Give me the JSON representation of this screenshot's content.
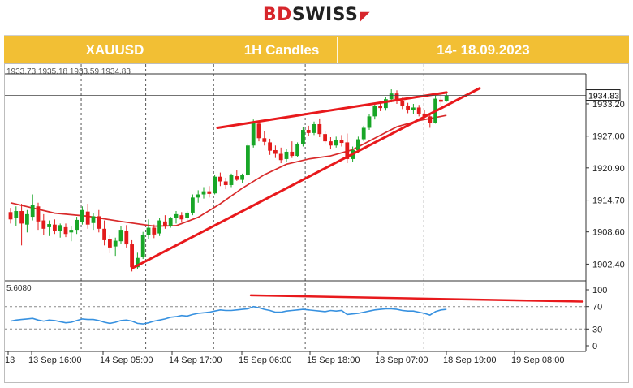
{
  "brand": {
    "part1": "BD",
    "part2": "SWISS",
    "mark": "◤"
  },
  "header": {
    "symbol": "XAUUSD",
    "timeframe": "1H Candles",
    "dates": "14- 18.09.2023"
  },
  "colors": {
    "up": "#18a627",
    "down": "#e21b1b",
    "trend": "#e8191c",
    "ma": "#d82a2a",
    "rsi": "#3791e0",
    "header_bg": "#f2bf34"
  },
  "chart_data": [
    {
      "type": "candlestick",
      "price_tag": "1934.83",
      "y_ticks": [
        "1933.20",
        "1927.00",
        "1920.90",
        "1914.70",
        "1908.60",
        "1902.40"
      ],
      "x_ticks": [
        "13",
        "13 Sep 16:00",
        "14 Sep 05:00",
        "14 Sep 17:00",
        "15 Sep 06:00",
        "15 Sep 18:00",
        "18 Sep 07:00",
        "18 Sep 19:00",
        "19 Sep 08:00"
      ],
      "ohlc_label": "1933.73 1935.18 1933.59 1934.83",
      "ylim": [
        1899.5,
        1938.5
      ],
      "candles": [
        [
          1912.4,
          1913.2,
          1910.2,
          1911.0
        ],
        [
          1911.3,
          1913.5,
          1909.8,
          1912.6
        ],
        [
          1912.6,
          1914.0,
          1906.0,
          1910.2
        ],
        [
          1910.0,
          1912.8,
          1908.5,
          1912.0
        ],
        [
          1911.5,
          1915.8,
          1910.8,
          1913.8
        ],
        [
          1913.5,
          1914.2,
          1909.0,
          1910.6
        ],
        [
          1910.8,
          1912.0,
          1908.0,
          1909.2
        ],
        [
          1909.5,
          1910.8,
          1907.8,
          1910.1
        ],
        [
          1910.0,
          1911.0,
          1908.2,
          1908.8
        ],
        [
          1908.8,
          1910.2,
          1907.5,
          1909.9
        ],
        [
          1909.5,
          1910.2,
          1907.6,
          1908.2
        ],
        [
          1908.5,
          1909.8,
          1906.8,
          1909.0
        ],
        [
          1909.0,
          1911.5,
          1908.2,
          1910.9
        ],
        [
          1910.5,
          1913.5,
          1910.0,
          1912.8
        ],
        [
          1912.5,
          1914.0,
          1909.2,
          1910.0
        ],
        [
          1910.3,
          1912.2,
          1909.0,
          1911.6
        ],
        [
          1911.6,
          1912.8,
          1908.5,
          1909.2
        ],
        [
          1909.2,
          1910.8,
          1906.0,
          1907.0
        ],
        [
          1907.2,
          1908.0,
          1904.5,
          1905.6
        ],
        [
          1905.8,
          1907.5,
          1904.0,
          1906.9
        ],
        [
          1906.8,
          1909.8,
          1906.2,
          1909.0
        ],
        [
          1908.8,
          1909.9,
          1905.6,
          1906.2
        ],
        [
          1906.2,
          1907.0,
          1901.0,
          1901.8
        ],
        [
          1901.8,
          1904.6,
          1901.5,
          1903.6
        ],
        [
          1903.8,
          1908.6,
          1903.4,
          1908.0
        ],
        [
          1908.0,
          1911.0,
          1907.2,
          1909.4
        ],
        [
          1909.4,
          1910.0,
          1907.4,
          1908.1
        ],
        [
          1908.3,
          1911.2,
          1907.8,
          1910.8
        ],
        [
          1910.6,
          1911.8,
          1909.2,
          1909.8
        ],
        [
          1909.8,
          1911.5,
          1909.4,
          1911.2
        ],
        [
          1911.2,
          1912.6,
          1910.2,
          1912.0
        ],
        [
          1911.8,
          1912.4,
          1910.4,
          1911.0
        ],
        [
          1911.2,
          1912.6,
          1910.8,
          1912.3
        ],
        [
          1912.3,
          1915.8,
          1911.8,
          1915.2
        ],
        [
          1915.2,
          1916.6,
          1914.2,
          1915.8
        ],
        [
          1915.8,
          1917.2,
          1915.0,
          1916.4
        ],
        [
          1916.4,
          1917.4,
          1915.2,
          1915.9
        ],
        [
          1916.0,
          1919.6,
          1915.8,
          1919.2
        ],
        [
          1919.2,
          1920.0,
          1917.4,
          1918.3
        ],
        [
          1918.3,
          1919.0,
          1916.8,
          1917.6
        ],
        [
          1917.6,
          1919.8,
          1917.2,
          1919.5
        ],
        [
          1919.3,
          1920.4,
          1918.4,
          1918.6
        ],
        [
          1918.6,
          1919.8,
          1918.0,
          1919.6
        ],
        [
          1919.6,
          1925.6,
          1919.4,
          1925.2
        ],
        [
          1925.2,
          1930.2,
          1924.8,
          1929.6
        ],
        [
          1929.4,
          1929.8,
          1926.0,
          1926.6
        ],
        [
          1926.6,
          1928.0,
          1925.2,
          1925.9
        ],
        [
          1925.8,
          1926.5,
          1923.4,
          1924.2
        ],
        [
          1924.3,
          1925.2,
          1922.8,
          1923.6
        ],
        [
          1923.6,
          1924.8,
          1921.8,
          1922.4
        ],
        [
          1922.6,
          1924.5,
          1922.0,
          1924.0
        ],
        [
          1924.0,
          1926.0,
          1922.8,
          1923.2
        ],
        [
          1923.2,
          1925.8,
          1923.0,
          1925.4
        ],
        [
          1925.4,
          1928.8,
          1925.0,
          1928.2
        ],
        [
          1928.2,
          1929.0,
          1927.0,
          1927.6
        ],
        [
          1927.6,
          1929.8,
          1927.2,
          1929.3
        ],
        [
          1929.3,
          1930.4,
          1926.8,
          1927.4
        ],
        [
          1927.4,
          1928.0,
          1925.6,
          1926.0
        ],
        [
          1926.0,
          1926.8,
          1924.6,
          1925.2
        ],
        [
          1925.2,
          1926.9,
          1924.8,
          1926.2
        ],
        [
          1926.3,
          1927.2,
          1925.0,
          1925.7
        ],
        [
          1925.8,
          1927.5,
          1921.8,
          1922.6
        ],
        [
          1922.6,
          1925.0,
          1922.0,
          1924.3
        ],
        [
          1924.3,
          1926.9,
          1923.8,
          1926.4
        ],
        [
          1926.4,
          1929.0,
          1926.0,
          1928.6
        ],
        [
          1928.6,
          1931.2,
          1928.2,
          1930.8
        ],
        [
          1930.8,
          1933.2,
          1930.2,
          1932.8
        ],
        [
          1932.8,
          1933.7,
          1931.8,
          1932.4
        ],
        [
          1932.4,
          1934.6,
          1931.9,
          1934.1
        ],
        [
          1934.1,
          1936.0,
          1933.5,
          1935.2
        ],
        [
          1935.2,
          1935.8,
          1933.2,
          1933.8
        ],
        [
          1933.8,
          1934.4,
          1932.2,
          1932.8
        ],
        [
          1932.8,
          1933.4,
          1931.4,
          1932.1
        ],
        [
          1932.1,
          1933.2,
          1931.2,
          1932.5
        ],
        [
          1932.5,
          1933.0,
          1930.8,
          1931.3
        ],
        [
          1931.3,
          1932.0,
          1930.4,
          1930.8
        ],
        [
          1930.8,
          1931.4,
          1928.6,
          1929.6
        ],
        [
          1929.6,
          1934.8,
          1929.4,
          1934.2
        ],
        [
          1934.0,
          1935.0,
          1932.8,
          1933.6
        ],
        [
          1933.7,
          1935.2,
          1933.6,
          1934.8
        ]
      ],
      "moving_average": [
        [
          0,
          1914.2
        ],
        [
          8,
          1912.2
        ],
        [
          14,
          1911.6
        ],
        [
          20,
          1910.6
        ],
        [
          26,
          1909.7
        ],
        [
          30,
          1909.8
        ],
        [
          34,
          1911.4
        ],
        [
          38,
          1914.0
        ],
        [
          42,
          1917.0
        ],
        [
          46,
          1919.6
        ],
        [
          50,
          1921.6
        ],
        [
          54,
          1922.6
        ],
        [
          58,
          1923.2
        ],
        [
          62,
          1924.4
        ],
        [
          66,
          1926.6
        ],
        [
          70,
          1928.8
        ],
        [
          74,
          1930.0
        ],
        [
          78,
          1930.8
        ],
        [
          79,
          1931.0
        ]
      ],
      "trendlines": [
        [
          [
            22,
            1901.6
          ],
          [
            85,
            1936.2
          ]
        ],
        [
          [
            37.5,
            1928.6
          ],
          [
            79,
            1935.4
          ]
        ]
      ]
    },
    {
      "type": "line",
      "indicator_label": "5.6080",
      "y_ticks": [
        "100",
        "70",
        "30",
        "0"
      ],
      "ylim": [
        0,
        100
      ],
      "reference_levels": [
        70,
        30
      ],
      "values": [
        44,
        46,
        47,
        48,
        49,
        46,
        44,
        46,
        45,
        43,
        41,
        42,
        45,
        48,
        47,
        47,
        45,
        42,
        40,
        42,
        45,
        46,
        44,
        40,
        39,
        41,
        44,
        46,
        48,
        51,
        52,
        54,
        53,
        56,
        58,
        59,
        60,
        62,
        64,
        63,
        63,
        64,
        65,
        66,
        70,
        68,
        65,
        63,
        60,
        60,
        62,
        63,
        64,
        65,
        64,
        63,
        62,
        61,
        63,
        62,
        63,
        56,
        57,
        58,
        60,
        62,
        64,
        65,
        66,
        66,
        65,
        63,
        62,
        62,
        60,
        58,
        55,
        61,
        64,
        65
      ],
      "trendline": [
        [
          65,
          1
        ],
        [
          79,
          0
        ]
      ]
    }
  ]
}
